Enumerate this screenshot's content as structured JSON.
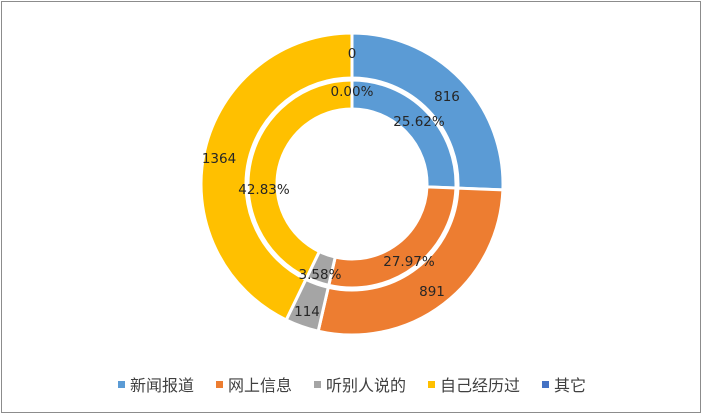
{
  "chart_data": {
    "type": "doughnut",
    "title": "",
    "center": [
      352,
      184
    ],
    "start_angle_deg": 0,
    "direction": "clockwise",
    "categories": [
      "新闻报道",
      "网上信息",
      "听别人说的",
      "自己经历过",
      "其它"
    ],
    "colors": [
      "#5b9bd5",
      "#ed7d31",
      "#a5a5a5",
      "#ffc000",
      "#4472c4"
    ],
    "series": [
      {
        "name": "count",
        "ring": "outer",
        "values": [
          816,
          891,
          114,
          1364,
          0
        ],
        "data_labels": [
          "816",
          "891",
          "114",
          "1364",
          "0"
        ]
      },
      {
        "name": "percentage",
        "ring": "inner",
        "values": [
          25.62,
          27.97,
          3.58,
          42.83,
          0.0
        ],
        "data_labels": [
          "25.62%",
          "27.97%",
          "3.58%",
          "42.83%",
          "0.00%"
        ]
      }
    ],
    "legend_position": "bottom"
  },
  "legend": {
    "items": [
      {
        "label": "新闻报道",
        "color": "#5b9bd5"
      },
      {
        "label": "网上信息",
        "color": "#ed7d31"
      },
      {
        "label": "听别人说的",
        "color": "#a5a5a5"
      },
      {
        "label": "自己经历过",
        "color": "#ffc000"
      },
      {
        "label": "其它",
        "color": "#4472c4"
      }
    ]
  }
}
